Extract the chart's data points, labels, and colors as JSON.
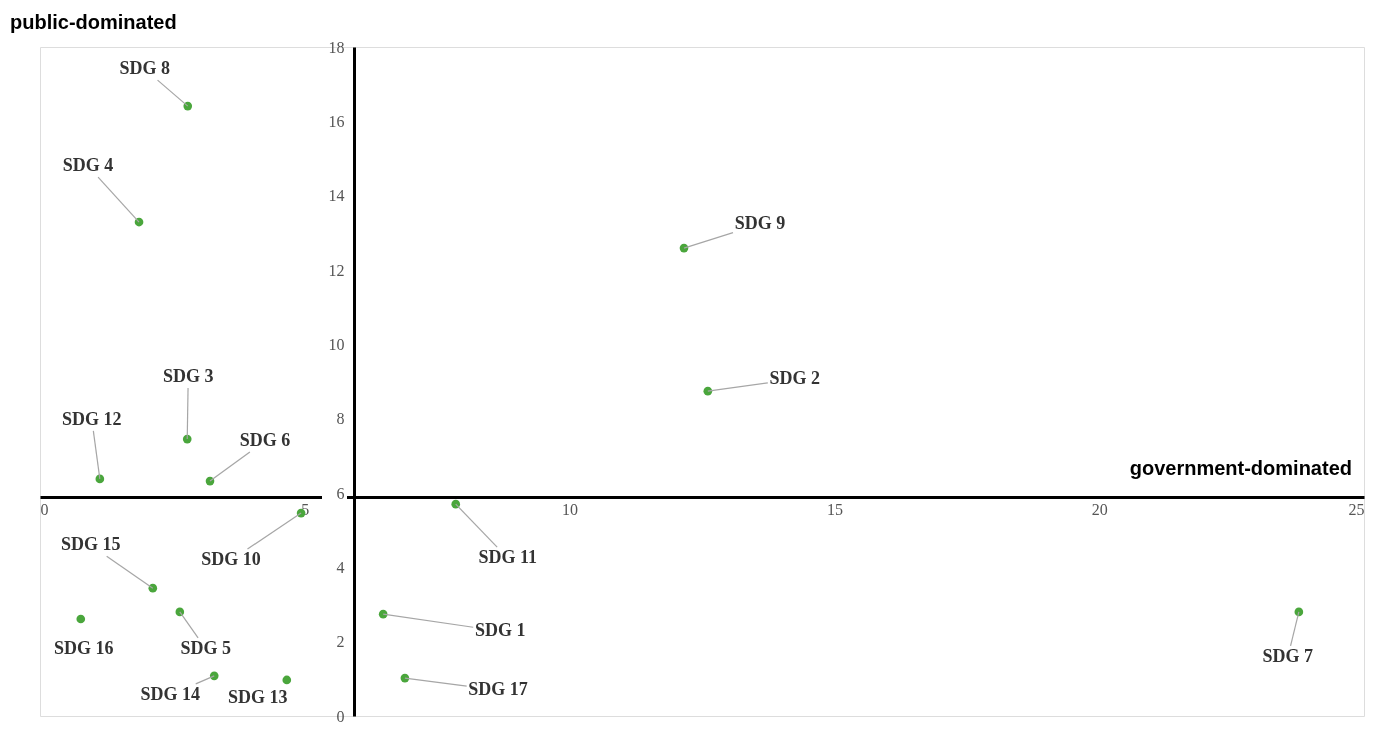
{
  "chart_data": {
    "type": "scatter",
    "x": [
      6.48,
      12.61,
      2.78,
      1.87,
      2.64,
      3.21,
      23.77,
      2.79,
      12.16,
      4.93,
      7.85,
      1.13,
      4.66,
      3.29,
      2.13,
      0.77,
      6.89
    ],
    "series": [
      {
        "color": "#4aa63c",
        "values": [
          2.74,
          8.74,
          7.45,
          13.29,
          2.8,
          6.32,
          2.8,
          16.41,
          12.59,
          5.46,
          5.7,
          6.38,
          0.97,
          1.08,
          3.44,
          2.61,
          1.02
        ]
      }
    ],
    "annotations": [
      {
        "text": "SDG 1",
        "x": 6.48,
        "y": 2.74
      },
      {
        "text": "SDG 2",
        "x": 12.61,
        "y": 8.74
      },
      {
        "text": "SDG 3",
        "x": 2.78,
        "y": 7.45
      },
      {
        "text": "SDG 4",
        "x": 1.87,
        "y": 13.29
      },
      {
        "text": "SDG 5",
        "x": 2.64,
        "y": 2.8
      },
      {
        "text": "SDG 6",
        "x": 3.21,
        "y": 6.32
      },
      {
        "text": "SDG 7",
        "x": 23.77,
        "y": 2.8
      },
      {
        "text": "SDG 8",
        "x": 2.79,
        "y": 16.41
      },
      {
        "text": "SDG 9",
        "x": 12.16,
        "y": 12.59
      },
      {
        "text": "SDG 10",
        "x": 4.93,
        "y": 5.46
      },
      {
        "text": "SDG 11",
        "x": 7.85,
        "y": 5.7
      },
      {
        "text": "SDG 12",
        "x": 1.13,
        "y": 6.38
      },
      {
        "text": "SDG 13",
        "x": 4.66,
        "y": 0.97
      },
      {
        "text": "SDG 14",
        "x": 3.29,
        "y": 1.08
      },
      {
        "text": "SDG 15",
        "x": 2.13,
        "y": 3.44
      },
      {
        "text": "SDG 16",
        "x": 0.77,
        "y": 2.61
      },
      {
        "text": "SDG 17",
        "x": 6.89,
        "y": 1.02
      },
      "public-dominated",
      "government-dominated"
    ],
    "xlim": [
      0,
      25
    ],
    "xticks": [
      0,
      5,
      10,
      15,
      20,
      25
    ],
    "ylim": [
      0,
      18
    ],
    "yticks": [
      0,
      2,
      4,
      6,
      8,
      10,
      12,
      14,
      16,
      18
    ],
    "grid": false,
    "legend": false,
    "marker": "circle"
  }
}
